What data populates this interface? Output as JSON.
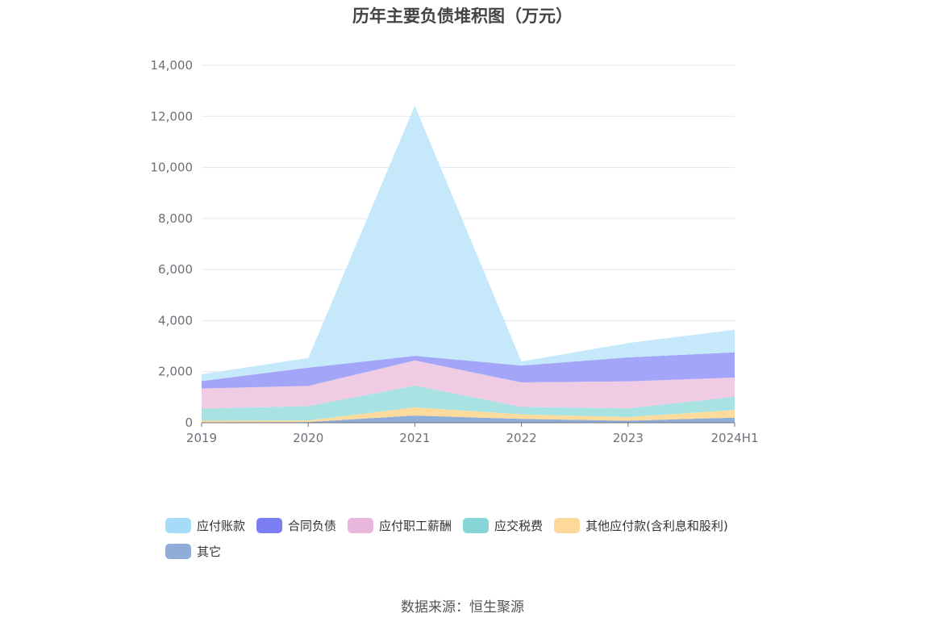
{
  "chart_data": {
    "type": "area",
    "stacked": true,
    "title": "历年主要负债堆积图（万元）",
    "categories": [
      "2019",
      "2020",
      "2021",
      "2022",
      "2023",
      "2024H1"
    ],
    "ylim": [
      0,
      14000
    ],
    "yticks": [
      0,
      2000,
      4000,
      6000,
      8000,
      10000,
      12000,
      14000
    ],
    "ytick_labels": [
      "0",
      "2,000",
      "4,000",
      "6,000",
      "8,000",
      "10,000",
      "12,000",
      "14,000"
    ],
    "grid": true,
    "legend_position": "bottom",
    "series": [
      {
        "name": "其它",
        "color": "#8eadd9",
        "values": [
          20,
          30,
          280,
          150,
          80,
          200
        ]
      },
      {
        "name": "其他应付款(含利息和股利)",
        "color": "#fddb9c",
        "values": [
          60,
          60,
          320,
          180,
          140,
          300
        ]
      },
      {
        "name": "应交税费",
        "color": "#a8e2e3",
        "values": [
          470,
          560,
          850,
          290,
          340,
          520
        ]
      },
      {
        "name": "应付职工薪酬",
        "color": "#efcbe4",
        "values": [
          790,
          790,
          990,
          960,
          1060,
          750
        ]
      },
      {
        "name": "合同负债",
        "color": "#a2a5f8",
        "values": [
          290,
          720,
          180,
          660,
          940,
          990
        ]
      },
      {
        "name": "应付账款",
        "color": "#c5e9fb",
        "values": [
          270,
          370,
          9800,
          160,
          560,
          880
        ]
      }
    ],
    "legend": [
      {
        "name": "应付账款",
        "color": "#a6dcf7"
      },
      {
        "name": "合同负债",
        "color": "#7b7df3"
      },
      {
        "name": "应付职工薪酬",
        "color": "#eab7dc"
      },
      {
        "name": "应交税费",
        "color": "#87d6d7"
      },
      {
        "name": "其他应付款(含利息和股利)",
        "color": "#fdd89b"
      },
      {
        "name": "其它",
        "color": "#8eadd9"
      }
    ]
  },
  "source": "数据来源：恒生聚源"
}
